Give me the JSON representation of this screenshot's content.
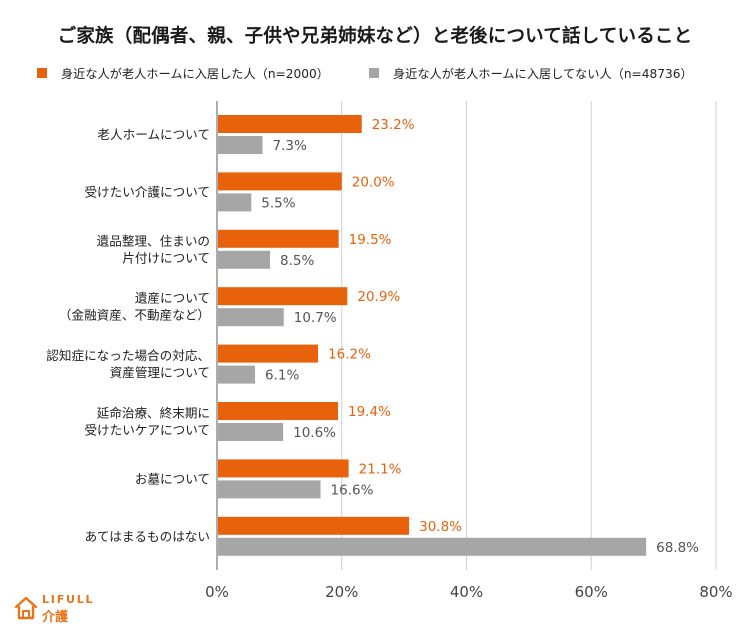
{
  "title": "ご家族（配偶者、親、子供や兄弟姉妹など）と老後について話していること",
  "legend": [
    {
      "label": "身近な人が老人ホームに入居した人（n=2000）",
      "color": "#e8620c"
    },
    {
      "label": "身近な人が老人ホームに入居してない人（n=48736）",
      "color": "#a6a6a6"
    }
  ],
  "logo": {
    "word": "LIFULL",
    "sub": "介護"
  },
  "chart_data": {
    "type": "bar",
    "orientation": "horizontal",
    "title": "ご家族（配偶者、親、子供や兄弟姉妹など）と老後について話していること",
    "categories": [
      [
        "老人ホームについて"
      ],
      [
        "受けたい介護について"
      ],
      [
        "遺品整理、住まいの",
        "片付けについて"
      ],
      [
        "遺産について",
        "（金融資産、不動産など）"
      ],
      [
        "認知症になった場合の対応、",
        "資産管理について"
      ],
      [
        "延命治療、終末期に",
        "受けたいケアについて"
      ],
      [
        "お墓について"
      ],
      [
        "あてはまるものはない"
      ]
    ],
    "series": [
      {
        "name": "身近な人が老人ホームに入居した人（n=2000）",
        "color": "#e8620c",
        "label_color": "#e8620c",
        "values": [
          23.2,
          20.0,
          19.5,
          20.9,
          16.2,
          19.4,
          21.1,
          30.8
        ]
      },
      {
        "name": "身近な人が老人ホームに入居してない人（n=48736）",
        "color": "#a6a6a6",
        "label_color": "#555555",
        "values": [
          7.3,
          5.5,
          8.5,
          10.7,
          6.1,
          10.6,
          16.6,
          68.8
        ]
      }
    ],
    "xlim": [
      0,
      80
    ],
    "xticks": [
      0,
      20,
      40,
      60,
      80
    ],
    "tick_suffix": "%",
    "value_suffix": "%",
    "grid": true
  }
}
